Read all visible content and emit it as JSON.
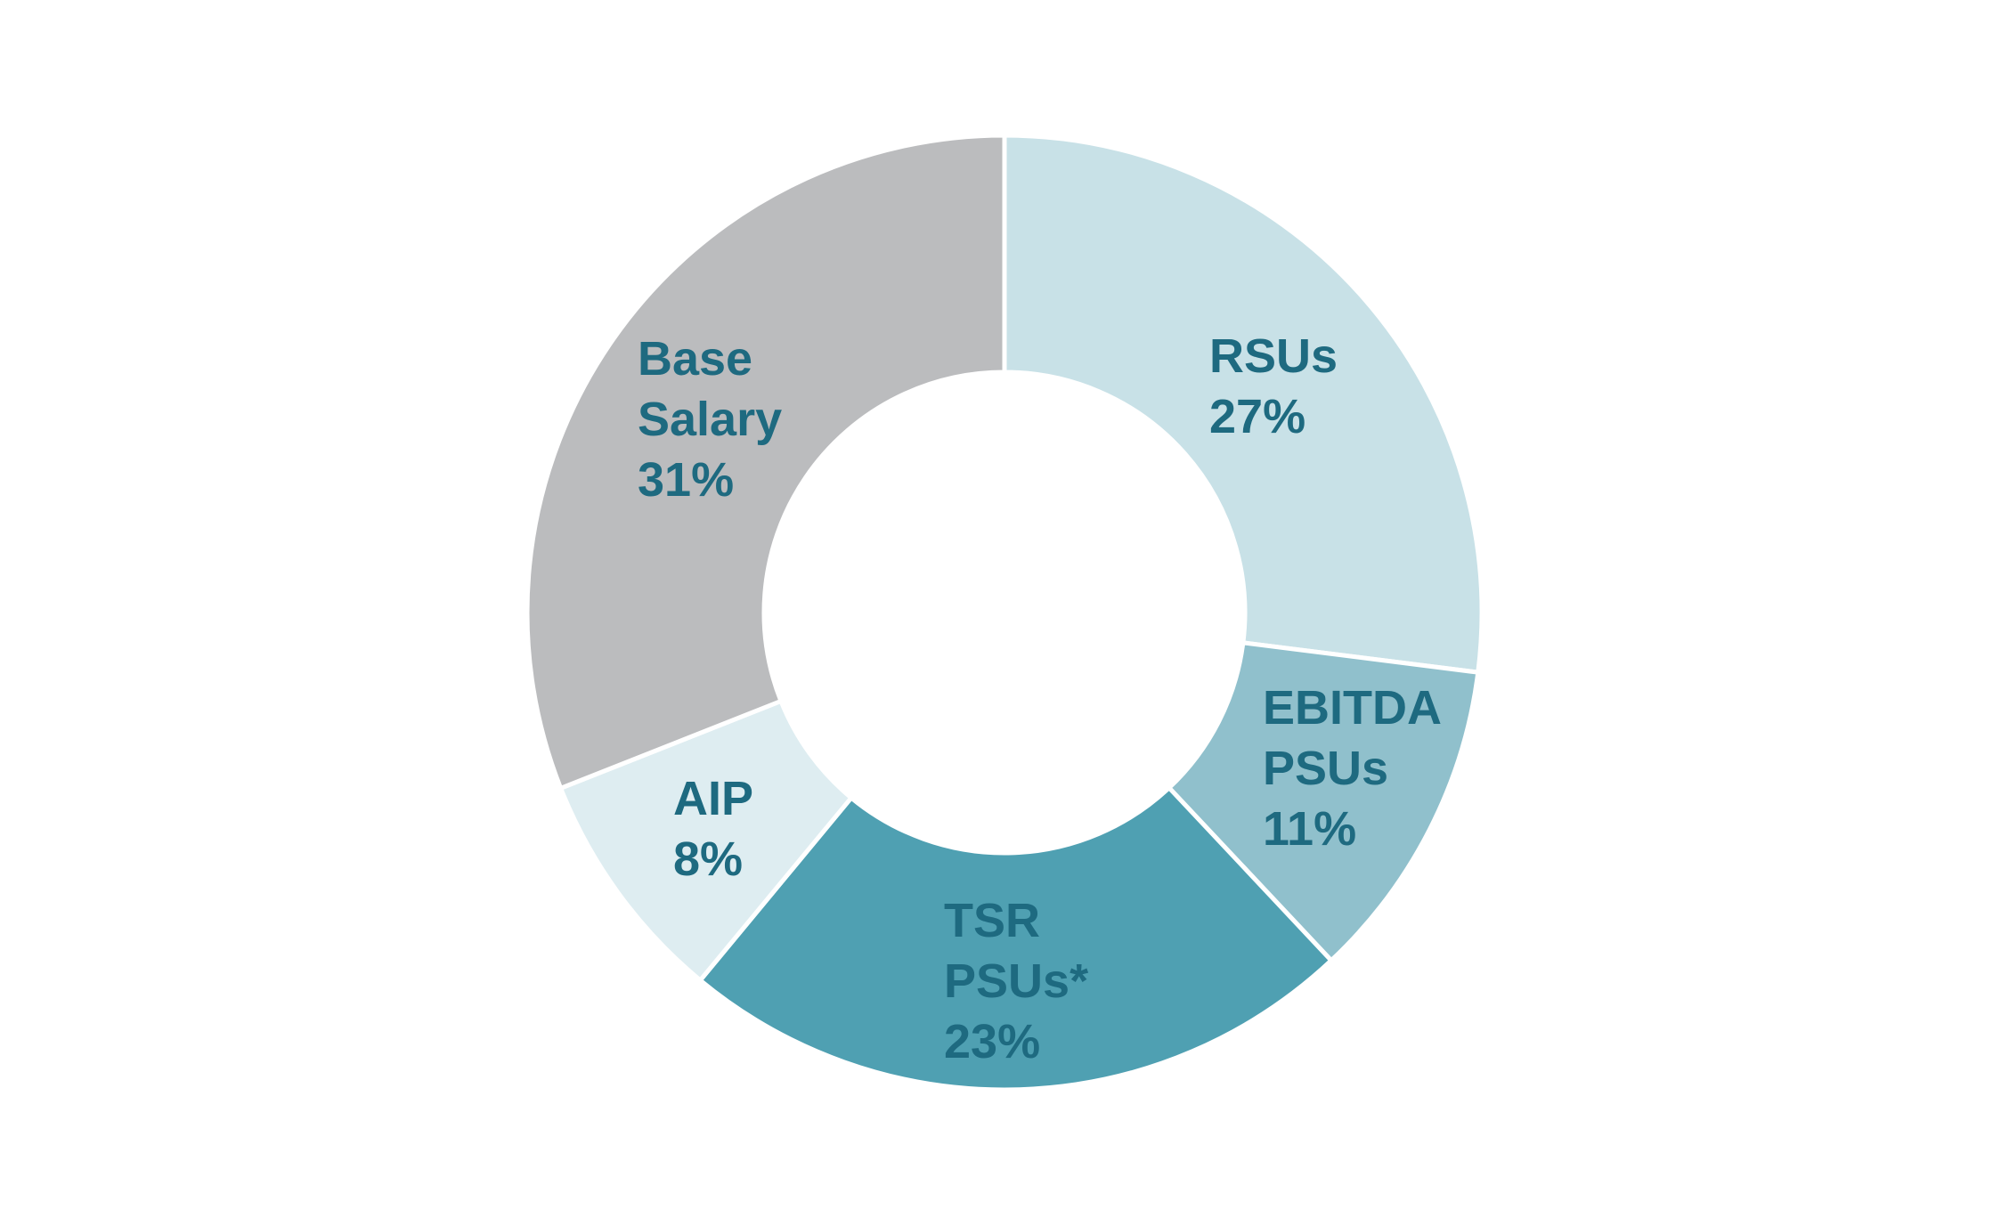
{
  "chart_data": {
    "type": "pie",
    "variant": "donut",
    "start": "12 o'clock",
    "direction": "clockwise",
    "label_color": "#1e6a80",
    "separator_color": "#ffffff",
    "slices": [
      {
        "label_lines": [
          "RSUs"
        ],
        "value_label": "27%",
        "value": 27,
        "color": "#c8e1e7"
      },
      {
        "label_lines": [
          "EBITDA",
          "PSUs"
        ],
        "value_label": "11%",
        "value": 11,
        "color": "#90c0cc"
      },
      {
        "label_lines": [
          "TSR",
          "PSUs*"
        ],
        "value_label": "23%",
        "value": 23,
        "color": "#4fa0b2"
      },
      {
        "label_lines": [
          "AIP"
        ],
        "value_label": "8%",
        "value": 8,
        "color": "#deedf1"
      },
      {
        "label_lines": [
          "Base",
          "Salary"
        ],
        "value_label": "31%",
        "value": 31,
        "color": "#bbbcbe"
      }
    ]
  }
}
